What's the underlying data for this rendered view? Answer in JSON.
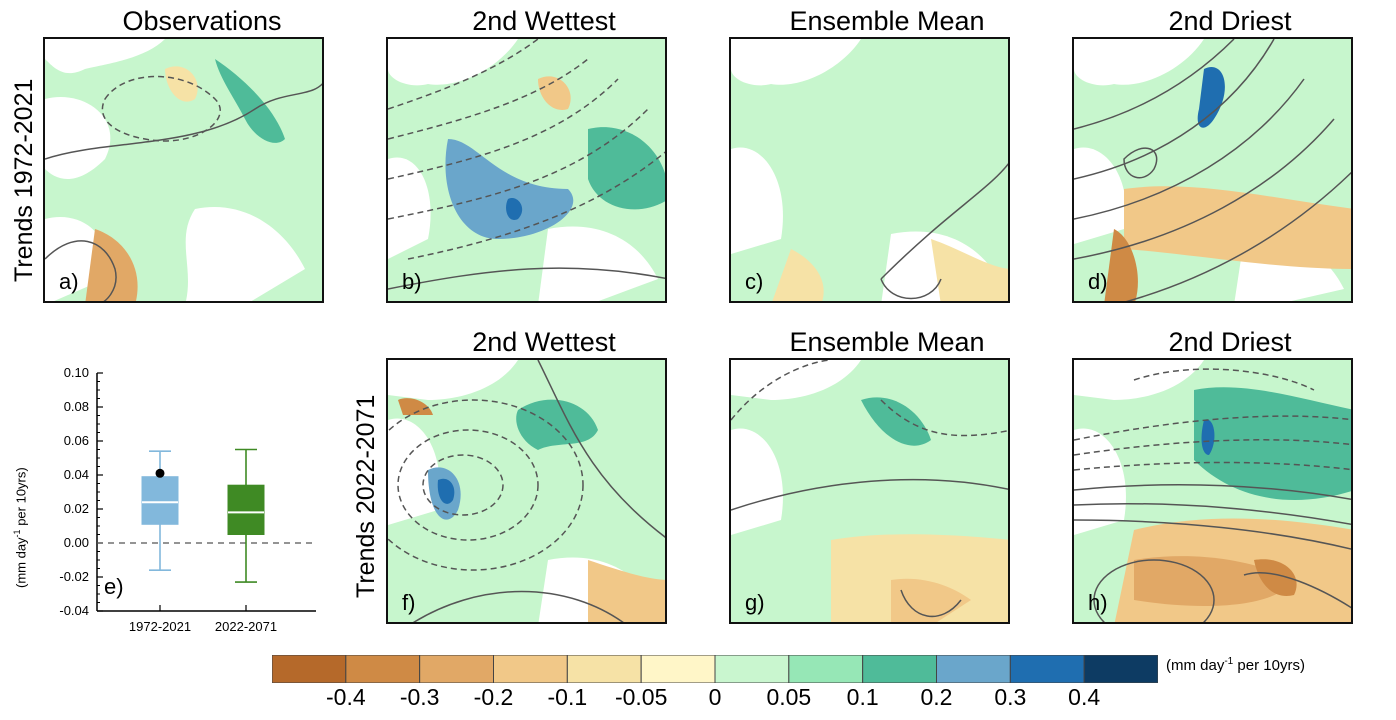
{
  "row_labels": {
    "top": "Trends 1972-2021",
    "bottom": "Trends 2022-2071"
  },
  "panels": [
    {
      "id": "a",
      "title": "Observations",
      "label": "a)"
    },
    {
      "id": "b",
      "title": "2nd Wettest",
      "label": "b)"
    },
    {
      "id": "c",
      "title": "Ensemble Mean",
      "label": "c)"
    },
    {
      "id": "d",
      "title": "2nd Driest",
      "label": "d)"
    },
    {
      "id": "f",
      "title": "2nd Wettest",
      "label": "f)"
    },
    {
      "id": "g",
      "title": "Ensemble Mean",
      "label": "g)"
    },
    {
      "id": "h",
      "title": "2nd Driest",
      "label": "h)"
    }
  ],
  "colorbar": {
    "unit_base": "(mm day",
    "unit_exp": "-1",
    "unit_tail": " per 10yrs)",
    "ticks": [
      "-0.4",
      "-0.3",
      "-0.2",
      "-0.1",
      "-0.05",
      "0",
      "0.05",
      "0.1",
      "0.2",
      "0.3",
      "0.4"
    ],
    "colors": [
      "#b5692a",
      "#cf8a45",
      "#e1a866",
      "#f1c888",
      "#f6e2a6",
      "#fff6c8",
      "#c9f6cf",
      "#96e7b6",
      "#4fbb99",
      "#6aa6cb",
      "#1f6eb0",
      "#0d3b63"
    ]
  },
  "chart_data": {
    "type": "box",
    "panel_label": "e)",
    "ylabel_base": "(mm day",
    "ylabel_exp": "-1",
    "ylabel_tail": " per 10yrs)",
    "ylim": [
      -0.04,
      0.1
    ],
    "yticks": [
      "0.10",
      "0.08",
      "0.06",
      "0.04",
      "0.02",
      "0.00",
      "-0.02",
      "-0.04"
    ],
    "reference_line": 0.0,
    "categories": [
      "1972-2021",
      "2022-2071"
    ],
    "boxes": [
      {
        "name": "1972-2021",
        "whisker_low": -0.016,
        "q1": 0.011,
        "median": 0.024,
        "q3": 0.039,
        "whisker_high": 0.054,
        "color": "#82b8dc",
        "observed": 0.041
      },
      {
        "name": "2022-2071",
        "whisker_low": -0.023,
        "q1": 0.005,
        "median": 0.018,
        "q3": 0.034,
        "whisker_high": 0.055,
        "color": "#3f8a24"
      }
    ]
  }
}
